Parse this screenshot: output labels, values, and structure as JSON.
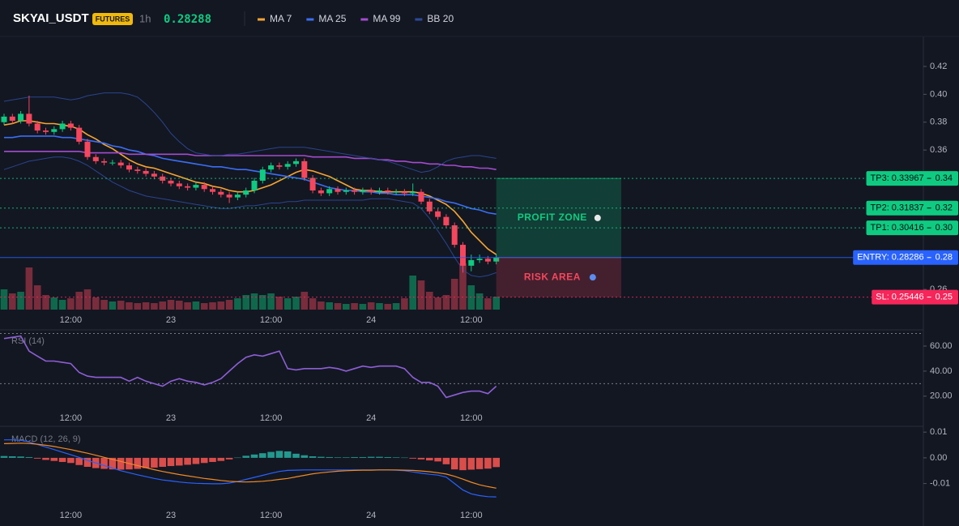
{
  "chart_data": [
    {
      "type": "candlestick",
      "title": "SKYAI_USDT",
      "badge": "FUTURES",
      "interval": "1h",
      "last_price": 0.28288,
      "up_color": "#0ecb81",
      "down_color": "#f6465d",
      "categories": [
        null,
        null,
        null,
        null,
        null,
        null,
        null,
        null,
        "12:00",
        null,
        null,
        null,
        null,
        null,
        null,
        null,
        null,
        null,
        null,
        null,
        "23",
        null,
        null,
        null,
        null,
        null,
        null,
        null,
        null,
        null,
        null,
        null,
        "12:00",
        null,
        null,
        null,
        null,
        null,
        null,
        null,
        null,
        null,
        null,
        null,
        "24",
        null,
        null,
        null,
        null,
        null,
        null,
        null,
        null,
        null,
        null,
        null,
        "12:00",
        null,
        null,
        null
      ],
      "open": [
        0.38,
        0.384,
        0.381,
        0.386,
        0.379,
        0.374,
        0.373,
        0.375,
        0.379,
        0.376,
        0.366,
        0.355,
        0.352,
        0.351,
        0.351,
        0.349,
        0.346,
        0.345,
        0.343,
        0.341,
        0.338,
        0.336,
        0.334,
        0.333,
        0.335,
        0.332,
        0.33,
        0.328,
        0.326,
        0.328,
        0.331,
        0.338,
        0.346,
        0.349,
        0.348,
        0.35,
        0.352,
        0.34,
        0.331,
        0.329,
        0.332,
        0.33,
        0.331,
        0.33,
        0.331,
        0.33,
        0.331,
        0.33,
        0.33,
        0.329,
        0.33,
        0.323,
        0.316,
        0.312,
        0.306,
        0.292,
        0.277,
        0.281,
        0.282,
        0.28
      ],
      "high": [
        0.386,
        0.386,
        0.388,
        0.399,
        0.381,
        0.376,
        0.377,
        0.381,
        0.381,
        0.378,
        0.368,
        0.357,
        0.354,
        0.353,
        0.353,
        0.351,
        0.348,
        0.347,
        0.345,
        0.343,
        0.34,
        0.338,
        0.336,
        0.337,
        0.337,
        0.334,
        0.332,
        0.33,
        0.33,
        0.333,
        0.34,
        0.348,
        0.351,
        0.351,
        0.352,
        0.354,
        0.354,
        0.342,
        0.333,
        0.334,
        0.334,
        0.333,
        0.333,
        0.333,
        0.333,
        0.333,
        0.333,
        0.332,
        0.332,
        0.336,
        0.332,
        0.325,
        0.318,
        0.314,
        0.308,
        0.294,
        0.285,
        0.285,
        0.284,
        0.285
      ],
      "low": [
        0.378,
        0.379,
        0.379,
        0.377,
        0.372,
        0.371,
        0.371,
        0.373,
        0.374,
        0.364,
        0.353,
        0.35,
        0.349,
        0.349,
        0.347,
        0.344,
        0.343,
        0.341,
        0.339,
        0.336,
        0.334,
        0.332,
        0.331,
        0.331,
        0.33,
        0.328,
        0.326,
        0.322,
        0.324,
        0.326,
        0.329,
        0.336,
        0.344,
        0.346,
        0.346,
        0.348,
        0.338,
        0.329,
        0.327,
        0.327,
        0.328,
        0.328,
        0.328,
        0.328,
        0.328,
        0.328,
        0.328,
        0.328,
        0.327,
        0.327,
        0.321,
        0.314,
        0.31,
        0.304,
        0.29,
        0.272,
        0.273,
        0.279,
        0.278,
        0.278
      ],
      "close": [
        0.384,
        0.381,
        0.386,
        0.379,
        0.374,
        0.373,
        0.375,
        0.379,
        0.376,
        0.366,
        0.355,
        0.352,
        0.351,
        0.351,
        0.349,
        0.346,
        0.345,
        0.343,
        0.341,
        0.338,
        0.336,
        0.334,
        0.333,
        0.335,
        0.332,
        0.33,
        0.328,
        0.326,
        0.328,
        0.331,
        0.338,
        0.346,
        0.349,
        0.348,
        0.35,
        0.352,
        0.34,
        0.331,
        0.329,
        0.332,
        0.33,
        0.331,
        0.33,
        0.331,
        0.33,
        0.331,
        0.33,
        0.33,
        0.329,
        0.33,
        0.323,
        0.316,
        0.312,
        0.306,
        0.292,
        0.277,
        0.281,
        0.282,
        0.28,
        0.28288
      ],
      "volume": [
        25,
        20,
        22,
        52,
        30,
        18,
        15,
        12,
        14,
        22,
        25,
        15,
        12,
        10,
        11,
        9,
        8,
        9,
        8,
        10,
        12,
        11,
        9,
        10,
        8,
        9,
        10,
        12,
        14,
        18,
        20,
        18,
        20,
        16,
        14,
        16,
        22,
        14,
        10,
        9,
        8,
        7,
        8,
        7,
        9,
        8,
        7,
        8,
        14,
        42,
        36,
        22,
        15,
        18,
        38,
        57,
        30,
        20,
        14,
        16
      ],
      "series": [
        {
          "name": "MA 7",
          "color": "#f7a531",
          "values": [
            0.378,
            0.379,
            0.381,
            0.381,
            0.38,
            0.379,
            0.379,
            0.378,
            0.377,
            0.375,
            0.371,
            0.368,
            0.364,
            0.361,
            0.357,
            0.353,
            0.35,
            0.348,
            0.347,
            0.345,
            0.343,
            0.341,
            0.339,
            0.337,
            0.336,
            0.334,
            0.333,
            0.331,
            0.33,
            0.33,
            0.331,
            0.333,
            0.335,
            0.338,
            0.341,
            0.344,
            0.346,
            0.345,
            0.343,
            0.341,
            0.338,
            0.335,
            0.332,
            0.331,
            0.331,
            0.33,
            0.33,
            0.33,
            0.33,
            0.33,
            0.329,
            0.327,
            0.324,
            0.321,
            0.316,
            0.309,
            0.301,
            0.295,
            0.289,
            0.285
          ]
        },
        {
          "name": "MA 25",
          "color": "#3b6ef5",
          "values": [
            0.369,
            0.369,
            0.37,
            0.37,
            0.37,
            0.37,
            0.37,
            0.369,
            0.369,
            0.368,
            0.367,
            0.366,
            0.365,
            0.363,
            0.362,
            0.36,
            0.359,
            0.357,
            0.356,
            0.354,
            0.353,
            0.352,
            0.351,
            0.35,
            0.349,
            0.348,
            0.348,
            0.347,
            0.346,
            0.346,
            0.345,
            0.344,
            0.343,
            0.342,
            0.341,
            0.34,
            0.339,
            0.337,
            0.335,
            0.333,
            0.332,
            0.331,
            0.331,
            0.33,
            0.33,
            0.329,
            0.329,
            0.328,
            0.328,
            0.328,
            0.327,
            0.326,
            0.325,
            0.323,
            0.322,
            0.32,
            0.318,
            0.317,
            0.315,
            0.314
          ]
        },
        {
          "name": "MA 99",
          "color": "#a54bd0",
          "values": [
            0.359,
            0.359,
            0.359,
            0.359,
            0.359,
            0.359,
            0.359,
            0.359,
            0.359,
            0.359,
            0.358,
            0.358,
            0.358,
            0.358,
            0.358,
            0.357,
            0.357,
            0.357,
            0.357,
            0.357,
            0.357,
            0.357,
            0.357,
            0.356,
            0.356,
            0.356,
            0.356,
            0.356,
            0.356,
            0.356,
            0.356,
            0.356,
            0.356,
            0.356,
            0.356,
            0.356,
            0.356,
            0.355,
            0.355,
            0.355,
            0.355,
            0.355,
            0.354,
            0.354,
            0.354,
            0.353,
            0.353,
            0.352,
            0.352,
            0.351,
            0.351,
            0.35,
            0.35,
            0.349,
            0.349,
            0.348,
            0.348,
            0.347,
            0.347,
            0.346
          ]
        },
        {
          "name": "BB 20",
          "color": "#2c4a9a",
          "values": [
            0.395,
            0.396,
            0.397,
            0.398,
            0.398,
            0.398,
            0.398,
            0.397,
            0.396,
            0.397,
            0.399,
            0.4,
            0.401,
            0.401,
            0.401,
            0.4,
            0.398,
            0.393,
            0.387,
            0.38,
            0.372,
            0.366,
            0.361,
            0.358,
            0.357,
            0.356,
            0.356,
            0.357,
            0.357,
            0.358,
            0.359,
            0.36,
            0.361,
            0.362,
            0.362,
            0.362,
            0.362,
            0.361,
            0.36,
            0.359,
            0.358,
            0.357,
            0.356,
            0.355,
            0.354,
            0.353,
            0.352,
            0.35,
            0.348,
            0.346,
            0.344,
            0.345,
            0.348,
            0.352,
            0.354,
            0.355,
            0.356,
            0.356,
            0.355,
            0.354
          ],
          "lower": [
            0.346,
            0.348,
            0.35,
            0.352,
            0.353,
            0.354,
            0.355,
            0.355,
            0.354,
            0.352,
            0.349,
            0.345,
            0.341,
            0.337,
            0.334,
            0.331,
            0.329,
            0.327,
            0.326,
            0.325,
            0.324,
            0.323,
            0.322,
            0.321,
            0.32,
            0.319,
            0.318,
            0.318,
            0.319,
            0.32,
            0.32,
            0.321,
            0.322,
            0.322,
            0.323,
            0.323,
            0.324,
            0.324,
            0.324,
            0.324,
            0.324,
            0.324,
            0.324,
            0.324,
            0.325,
            0.325,
            0.325,
            0.324,
            0.323,
            0.322,
            0.318,
            0.311,
            0.302,
            0.293,
            0.283,
            0.274,
            0.27,
            0.269,
            0.27,
            0.272
          ]
        }
      ],
      "ylim": [
        0.2455,
        0.4415
      ],
      "yticks": [
        0.26,
        0.36,
        0.38,
        {
          "value": 0.4,
          "label": "0.40"
        },
        0.42
      ],
      "levels": [
        {
          "value": 0.33967,
          "label": "TP3: 0.33967",
          "price_label": "0.34",
          "color": "#0ecb81",
          "text_color": "#0b0e11",
          "dashed": true
        },
        {
          "value": 0.31837,
          "label": "TP2: 0.31837",
          "price_label": "0.32",
          "color": "#0ecb81",
          "text_color": "#0b0e11",
          "dashed": true
        },
        {
          "value": 0.30416,
          "label": "TP1: 0.30416",
          "price_label": "0.30",
          "color": "#0ecb81",
          "text_color": "#0b0e11",
          "dashed": true
        },
        {
          "value": 0.28286,
          "label": "ENTRY: 0.28286",
          "price_label": "0.28",
          "color": "#2962ff",
          "text_color": "#ffffff",
          "dashed": false
        },
        {
          "value": 0.25446,
          "label": "SL: 0.25446",
          "price_label": "0.25",
          "color": "#f6265a",
          "text_color": "#ffffff",
          "dashed": true
        }
      ],
      "zones": [
        {
          "label": "PROFIT ZONE",
          "from": 0.28286,
          "to": 0.33967,
          "color": "#0ecb81"
        },
        {
          "label": "RISK AREA",
          "from": 0.25446,
          "to": 0.28286,
          "color": "#f6465d"
        }
      ]
    },
    {
      "type": "line",
      "title": "RSI (14)",
      "color": "#8e5fd6",
      "values": [
        66,
        67,
        68,
        56,
        52,
        48,
        48,
        47,
        46,
        39,
        36,
        35,
        35,
        35,
        35,
        32,
        35,
        32,
        30,
        28,
        32,
        34,
        32,
        31,
        29,
        31,
        34,
        40,
        46,
        51,
        53,
        52,
        54,
        56,
        42,
        41,
        42,
        42,
        42,
        43,
        42,
        40,
        42,
        44,
        43,
        44,
        44,
        44,
        42,
        35,
        31,
        31,
        28,
        19,
        21,
        23,
        24,
        24,
        22,
        28
      ],
      "levels": [
        70,
        30
      ],
      "ylim": [
        5,
        71
      ],
      "yticks": [
        {
          "value": 60,
          "label": "60.00"
        },
        {
          "value": 40,
          "label": "40.00"
        },
        {
          "value": 20,
          "label": "20.00"
        }
      ]
    },
    {
      "type": "macd",
      "title": "MACD (12, 26, 9)",
      "up_color": "#26a69a",
      "down_color": "#ef5350",
      "histogram": [
        0.0007,
        0.0006,
        0.0005,
        0.0003,
        -0.0003,
        -0.0008,
        -0.0012,
        -0.0016,
        -0.002,
        -0.0028,
        -0.0035,
        -0.004,
        -0.0043,
        -0.0045,
        -0.0046,
        -0.0045,
        -0.0043,
        -0.004,
        -0.0038,
        -0.0035,
        -0.0032,
        -0.003,
        -0.0027,
        -0.0024,
        -0.002,
        -0.0016,
        -0.0012,
        -0.0006,
        0.0001,
        0.0008,
        0.0013,
        0.0018,
        0.0023,
        0.0027,
        0.0025,
        0.0016,
        0.001,
        0.0006,
        0.0004,
        0.0003,
        0.0002,
        0.0002,
        0.0003,
        0.0003,
        0.0004,
        0.0004,
        0.0003,
        0.0002,
        0.0001,
        -0.0003,
        -0.0006,
        -0.001,
        -0.0014,
        -0.0025,
        -0.0045,
        -0.0048,
        -0.0046,
        -0.0044,
        -0.0042,
        -0.0036
      ],
      "macd_line": {
        "color": "#2962ff",
        "values": [
          0.007,
          0.007,
          0.0068,
          0.0062,
          0.0052,
          0.0042,
          0.0032,
          0.0022,
          0.0012,
          0.0002,
          -0.001,
          -0.002,
          -0.003,
          -0.004,
          -0.005,
          -0.0058,
          -0.0066,
          -0.0073,
          -0.008,
          -0.0086,
          -0.009,
          -0.0094,
          -0.0097,
          -0.0099,
          -0.01,
          -0.0101,
          -0.0101,
          -0.0098,
          -0.0092,
          -0.0084,
          -0.0076,
          -0.0068,
          -0.006,
          -0.0053,
          -0.0049,
          -0.0048,
          -0.0047,
          -0.0047,
          -0.0047,
          -0.0047,
          -0.0047,
          -0.0047,
          -0.0047,
          -0.0047,
          -0.0047,
          -0.0047,
          -0.0047,
          -0.0048,
          -0.005,
          -0.0055,
          -0.006,
          -0.0064,
          -0.0067,
          -0.0075,
          -0.01,
          -0.0125,
          -0.014,
          -0.0147,
          -0.0151,
          -0.0152
        ]
      },
      "signal_line": {
        "color": "#f08a24",
        "values": [
          0.0055,
          0.0056,
          0.0057,
          0.0056,
          0.0053,
          0.0049,
          0.0044,
          0.0038,
          0.0032,
          0.0025,
          0.0018,
          0.001,
          0.0002,
          -0.0006,
          -0.0014,
          -0.0022,
          -0.003,
          -0.0038,
          -0.0046,
          -0.0053,
          -0.0059,
          -0.0065,
          -0.007,
          -0.0075,
          -0.008,
          -0.0084,
          -0.0088,
          -0.0091,
          -0.0093,
          -0.0094,
          -0.0093,
          -0.0091,
          -0.0088,
          -0.0084,
          -0.008,
          -0.0074,
          -0.0068,
          -0.0062,
          -0.0058,
          -0.0055,
          -0.0052,
          -0.005,
          -0.0049,
          -0.0048,
          -0.0048,
          -0.0047,
          -0.0047,
          -0.0047,
          -0.0048,
          -0.0049,
          -0.0051,
          -0.0054,
          -0.0058,
          -0.0063,
          -0.0072,
          -0.0083,
          -0.0095,
          -0.0105,
          -0.0112,
          -0.0118
        ]
      },
      "ylim": [
        -0.018,
        0.011
      ],
      "yticks": [
        0.01,
        {
          "value": 0,
          "label": "0.00"
        },
        -0.01
      ]
    }
  ]
}
